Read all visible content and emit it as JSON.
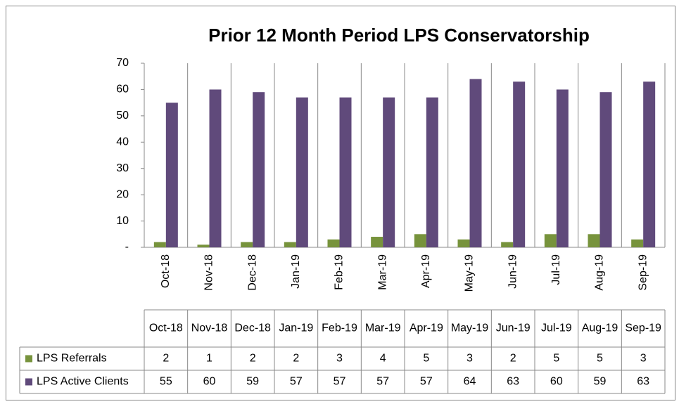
{
  "chart_data": {
    "type": "bar",
    "title": "Prior 12 Month Period LPS Conservatorship",
    "categories": [
      "Oct-18",
      "Nov-18",
      "Dec-18",
      "Jan-19",
      "Feb-19",
      "Mar-19",
      "Apr-19",
      "May-19",
      "Jun-19",
      "Jul-19",
      "Aug-19",
      "Sep-19"
    ],
    "series": [
      {
        "name": "LPS Referrals",
        "color": "#77933c",
        "values": [
          2,
          1,
          2,
          2,
          3,
          4,
          5,
          3,
          2,
          5,
          5,
          3
        ]
      },
      {
        "name": "LPS Active Clients",
        "color": "#604a7b",
        "values": [
          55,
          60,
          59,
          57,
          57,
          57,
          57,
          64,
          63,
          60,
          59,
          63
        ]
      }
    ],
    "ylim": [
      0,
      70
    ],
    "yticks": [
      {
        "value": 0,
        "label": "-"
      },
      10,
      20,
      30,
      40,
      50,
      60,
      70
    ]
  }
}
